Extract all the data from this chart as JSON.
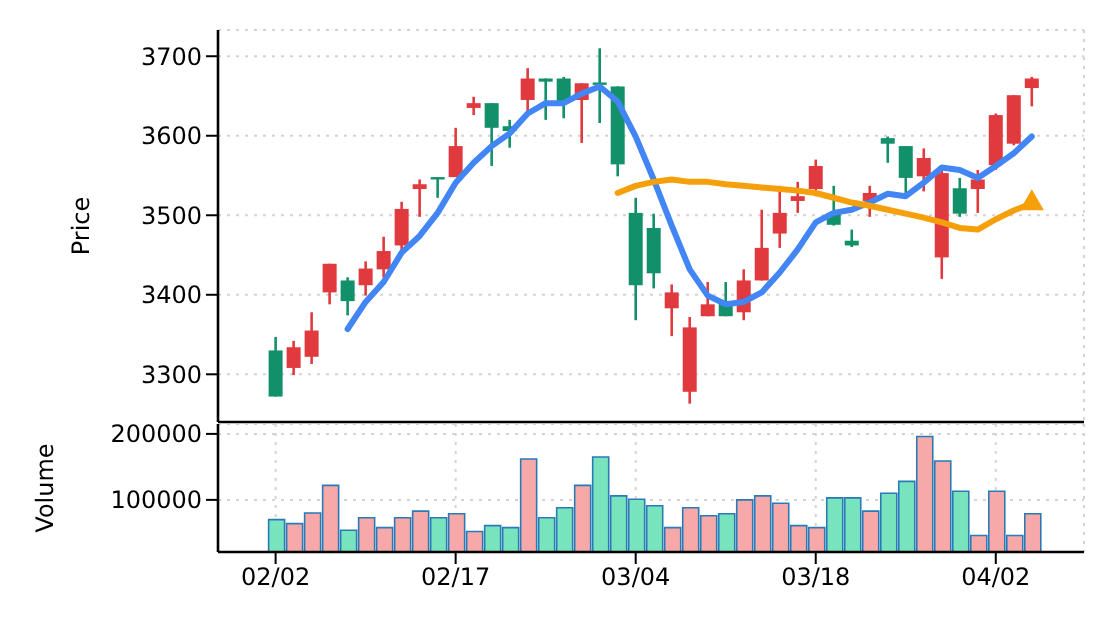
{
  "chart_data": [
    {
      "type": "candlestick",
      "ylabel": "Price",
      "tick_labels": "y",
      "grid": true,
      "categories": [
        null,
        null,
        null,
        null,
        null,
        null,
        null,
        null,
        null,
        null,
        null,
        null,
        null,
        null,
        null,
        null,
        null,
        null,
        null,
        null,
        null,
        null,
        null,
        null,
        null,
        null,
        null,
        null,
        null,
        null,
        null,
        null,
        null,
        null,
        null,
        null,
        null,
        null,
        null,
        null,
        null,
        null,
        null
      ],
      "ylim": [
        3240,
        3733
      ],
      "yticks": [
        3300,
        3400,
        3500,
        3600,
        3700
      ],
      "ohlc": [
        [
          3330,
          3347,
          3272,
          3272
        ],
        [
          3308,
          3342,
          3299,
          3334
        ],
        [
          3322,
          3378,
          3313,
          3355
        ],
        [
          3403,
          3439,
          3388,
          3439
        ],
        [
          3418,
          3422,
          3374,
          3392
        ],
        [
          3412,
          3442,
          3399,
          3433
        ],
        [
          3432,
          3473,
          3422,
          3455
        ],
        [
          3462,
          3517,
          3452,
          3508
        ],
        [
          3533,
          3545,
          3498,
          3539
        ],
        [
          3548,
          3548,
          3522,
          3545
        ],
        [
          3548,
          3610,
          3548,
          3587
        ],
        [
          3635,
          3649,
          3626,
          3641
        ],
        [
          3641,
          3641,
          3562,
          3610
        ],
        [
          3612,
          3620,
          3585,
          3606
        ],
        [
          3645,
          3685,
          3631,
          3672
        ],
        [
          3672,
          3672,
          3620,
          3668
        ],
        [
          3672,
          3674,
          3622,
          3643
        ],
        [
          3645,
          3666,
          3591,
          3666
        ],
        [
          3667,
          3710,
          3616,
          3664
        ],
        [
          3662,
          3662,
          3549,
          3564
        ],
        [
          3503,
          3522,
          3368,
          3412
        ],
        [
          3484,
          3502,
          3408,
          3427
        ],
        [
          3383,
          3413,
          3348,
          3403
        ],
        [
          3278,
          3372,
          3263,
          3359
        ],
        [
          3373,
          3416,
          3373,
          3388
        ],
        [
          3389,
          3416,
          3373,
          3373
        ],
        [
          3378,
          3432,
          3368,
          3418
        ],
        [
          3418,
          3507,
          3418,
          3459
        ],
        [
          3477,
          3537,
          3459,
          3503
        ],
        [
          3518,
          3542,
          3503,
          3524
        ],
        [
          3533,
          3570,
          3524,
          3562
        ],
        [
          3503,
          3537,
          3487,
          3488
        ],
        [
          3468,
          3482,
          3460,
          3462
        ],
        [
          3518,
          3537,
          3498,
          3528
        ],
        [
          3597,
          3599,
          3566,
          3590
        ],
        [
          3587,
          3587,
          3528,
          3547
        ],
        [
          3549,
          3584,
          3530,
          3572
        ],
        [
          3447,
          3562,
          3420,
          3553
        ],
        [
          3534,
          3547,
          3498,
          3502
        ],
        [
          3533,
          3557,
          3503,
          3545
        ],
        [
          3563,
          3628,
          3557,
          3626
        ],
        [
          3590,
          3651,
          3588,
          3651
        ],
        [
          3660,
          3674,
          3637,
          3672
        ]
      ],
      "colors": [
        "#12906a",
        "#e03a3e",
        "#e03a3e",
        "#e03a3e",
        "#12906a",
        "#e03a3e",
        "#e03a3e",
        "#e03a3e",
        "#e03a3e",
        "#12906a",
        "#e03a3e",
        "#e03a3e",
        "#12906a",
        "#12906a",
        "#e03a3e",
        "#12906a",
        "#12906a",
        "#e03a3e",
        "#12906a",
        "#12906a",
        "#12906a",
        "#12906a",
        "#e03a3e",
        "#e03a3e",
        "#e03a3e",
        "#12906a",
        "#e03a3e",
        "#e03a3e",
        "#e03a3e",
        "#e03a3e",
        "#e03a3e",
        "#12906a",
        "#12906a",
        "#e03a3e",
        "#12906a",
        "#12906a",
        "#e03a3e",
        "#e03a3e",
        "#12906a",
        "#e03a3e",
        "#e03a3e",
        "#e03a3e",
        "#e03a3e"
      ],
      "series": [
        {
          "type": "line",
          "color": "#4285f4",
          "values": [
            null,
            null,
            null,
            null,
            3357,
            3391,
            3416,
            3453,
            3474,
            3503,
            3541,
            3566,
            3587,
            3603,
            3628,
            3641,
            3641,
            3653,
            3662,
            3643,
            3599,
            3545,
            3487,
            3432,
            3399,
            3388,
            3391,
            3403,
            3428,
            3457,
            3491,
            3503,
            3507,
            3516,
            3527,
            3524,
            3541,
            3560,
            3557,
            3547,
            3562,
            3578,
            3599
          ]
        },
        {
          "type": "line",
          "color": "#f59f0a",
          "values": [
            null,
            null,
            null,
            null,
            null,
            null,
            null,
            null,
            null,
            null,
            null,
            null,
            null,
            null,
            null,
            null,
            null,
            null,
            null,
            3528,
            3537,
            3542,
            3545,
            3542,
            3542,
            3539,
            3537,
            3535,
            3533,
            3531,
            3528,
            3522,
            3516,
            3512,
            3507,
            3502,
            3497,
            3491,
            3484,
            3482,
            3495,
            3506,
            3515
          ]
        },
        {
          "type": "scatter",
          "marker": "triangle",
          "color": "#f59f0a",
          "values": [
            null,
            null,
            null,
            null,
            null,
            null,
            null,
            null,
            null,
            null,
            null,
            null,
            null,
            null,
            null,
            null,
            null,
            null,
            null,
            null,
            null,
            null,
            null,
            null,
            null,
            null,
            null,
            null,
            null,
            null,
            null,
            null,
            null,
            null,
            null,
            null,
            null,
            null,
            null,
            null,
            null,
            null,
            3515
          ]
        }
      ]
    },
    {
      "type": "bar",
      "ylabel": "Volume",
      "grid": true,
      "categories": [
        "02/02",
        null,
        null,
        null,
        null,
        null,
        null,
        null,
        null,
        null,
        "02/17",
        null,
        null,
        null,
        null,
        null,
        null,
        null,
        null,
        null,
        "03/04",
        null,
        null,
        null,
        null,
        null,
        null,
        null,
        null,
        null,
        "03/18",
        null,
        null,
        null,
        null,
        null,
        null,
        null,
        null,
        null,
        "04/02",
        null,
        null
      ],
      "ylim": [
        21000,
        215000
      ],
      "yticks": [
        100000,
        200000
      ],
      "values": [
        70000,
        64000,
        80000,
        122000,
        54000,
        73000,
        58000,
        73000,
        83000,
        73000,
        79000,
        52000,
        61000,
        58000,
        162000,
        73000,
        88000,
        122000,
        165000,
        106000,
        101000,
        91000,
        58000,
        88000,
        76000,
        79000,
        100000,
        106000,
        95000,
        61000,
        58000,
        103000,
        103000,
        83000,
        110000,
        128000,
        196000,
        159000,
        113000,
        46000,
        113000,
        46000,
        79000
      ],
      "colors": [
        "#77e4bd",
        "#f7a8a8",
        "#f7a8a8",
        "#f7a8a8",
        "#77e4bd",
        "#f7a8a8",
        "#f7a8a8",
        "#f7a8a8",
        "#f7a8a8",
        "#77e4bd",
        "#f7a8a8",
        "#f7a8a8",
        "#77e4bd",
        "#77e4bd",
        "#f7a8a8",
        "#77e4bd",
        "#77e4bd",
        "#f7a8a8",
        "#77e4bd",
        "#77e4bd",
        "#77e4bd",
        "#77e4bd",
        "#f7a8a8",
        "#f7a8a8",
        "#f7a8a8",
        "#77e4bd",
        "#f7a8a8",
        "#f7a8a8",
        "#f7a8a8",
        "#f7a8a8",
        "#f7a8a8",
        "#77e4bd",
        "#77e4bd",
        "#f7a8a8",
        "#77e4bd",
        "#77e4bd",
        "#f7a8a8",
        "#f7a8a8",
        "#77e4bd",
        "#f7a8a8",
        "#f7a8a8",
        "#f7a8a8",
        "#f7a8a8"
      ]
    }
  ]
}
